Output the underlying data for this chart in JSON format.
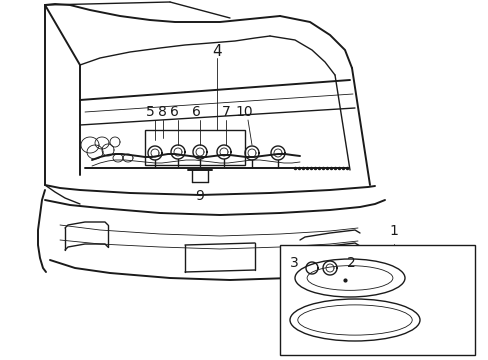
{
  "bg_color": "#ffffff",
  "line_color": "#1a1a1a",
  "figsize": [
    4.89,
    3.6
  ],
  "dpi": 100,
  "label_fs": 9,
  "lw_main": 1.0,
  "lw_thin": 0.6,
  "lw_thick": 1.4
}
